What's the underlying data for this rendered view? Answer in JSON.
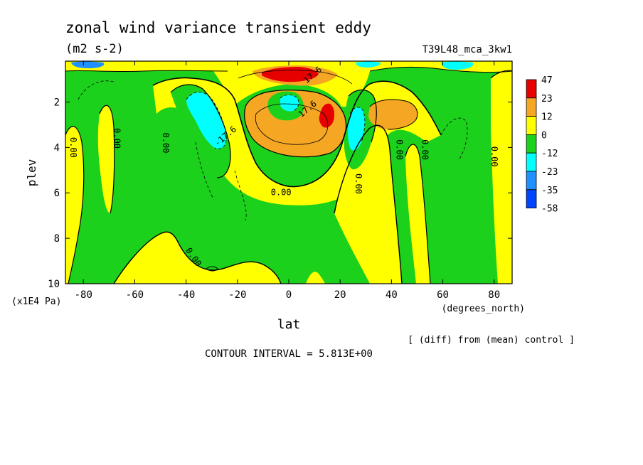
{
  "chart_data": {
    "type": "contour",
    "title": "zonal wind variance transient eddy",
    "units": "(m2 s-2)",
    "run_label": "T39L48_mca_3kw1",
    "xlabel": "lat",
    "xunit": "(degrees_north)",
    "ylabel": "plev",
    "yunit": "(x1E4 Pa)",
    "xlim": [
      -87,
      87
    ],
    "ylim": [
      10,
      0.2
    ],
    "x_ticks": [
      -80,
      -60,
      -40,
      -20,
      0,
      20,
      40,
      60,
      80
    ],
    "x_tick_labels": [
      "-80",
      "-60",
      "-40",
      "-20",
      "0",
      "20",
      "40",
      "60",
      "80"
    ],
    "y_ticks": [
      2,
      4,
      6,
      8,
      10
    ],
    "y_tick_labels": [
      "2",
      "4",
      "6",
      "8",
      "10"
    ],
    "contour_interval_text": "CONTOUR INTERVAL = 5.813E+00",
    "diff_note": "[ (diff) from (mean) control ]",
    "contour_labels": [
      {
        "text": "0.00",
        "lat": -85,
        "p": 4.0
      },
      {
        "text": "0.00",
        "lat": -68,
        "p": 3.6
      },
      {
        "text": "0.00",
        "lat": -49,
        "p": 3.8
      },
      {
        "text": "-17.6",
        "lat": -24,
        "p": 3.6
      },
      {
        "text": "0.00",
        "lat": -38,
        "p": 8.9
      },
      {
        "text": "0.00",
        "lat": -3,
        "p": 6.1
      },
      {
        "text": "17.6",
        "lat": 10,
        "p": 0.9
      },
      {
        "text": "17.6",
        "lat": 8,
        "p": 2.4
      },
      {
        "text": "0.00",
        "lat": 26,
        "p": 5.6
      },
      {
        "text": "0.00",
        "lat": 42,
        "p": 4.1
      },
      {
        "text": "0.00",
        "lat": 52,
        "p": 4.1
      },
      {
        "text": "0.00",
        "lat": 79,
        "p": 4.4
      }
    ],
    "colorbar": {
      "labels": [
        "47",
        "23",
        "12",
        "0",
        "-12",
        "-23",
        "-35",
        "-58"
      ],
      "colors": [
        "#e60000",
        "#f5a623",
        "#ffff00",
        "#1bd11b",
        "#00ffff",
        "#1e90ff",
        "#0044ff"
      ]
    }
  }
}
